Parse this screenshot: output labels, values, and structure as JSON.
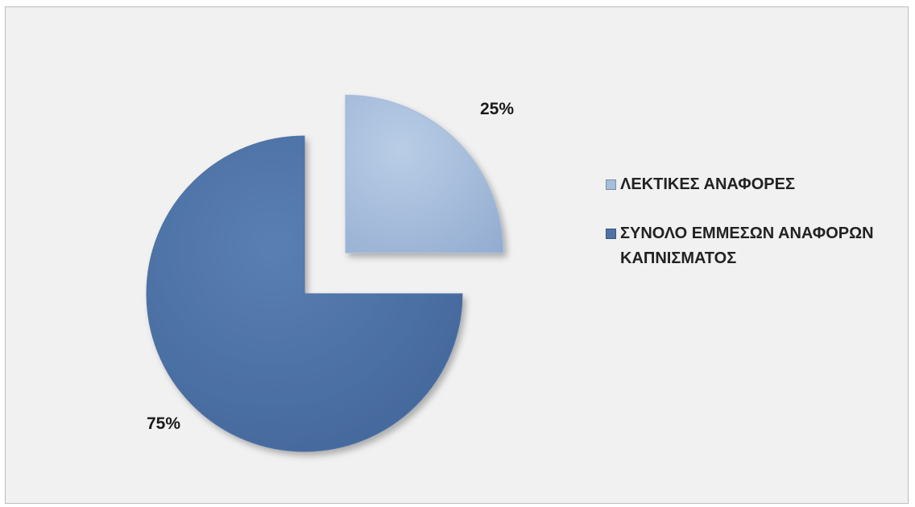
{
  "chart_data": {
    "type": "pie",
    "categories": [
      "ΛΕΚΤΙΚΕΣ ΑΝΑΦΟΡΕΣ",
      "ΣΥΝΟΛΟ ΕΜΜΕΣΩΝ ΑΝΑΦΟΡΩΝ ΚΑΠΝΙΣΜΑΤΟΣ"
    ],
    "values": [
      25,
      75
    ],
    "data_labels": [
      "25%",
      "75%"
    ],
    "colors": [
      "#a6bddb",
      "#4f73a5"
    ],
    "exploded_slice": 0,
    "legend_position": "right"
  },
  "legend": {
    "items": [
      {
        "label": "ΛΕΚΤΙΚΕΣ ΑΝΑΦΟΡΕΣ",
        "color": "#a6bddb"
      },
      {
        "label": "ΣΥΝΟΛΟ ΕΜΜΕΣΩΝ ΑΝΑΦΟΡΩΝ ΚΑΠΝΙΣΜΑΤΟΣ",
        "color": "#4f73a5"
      }
    ]
  }
}
